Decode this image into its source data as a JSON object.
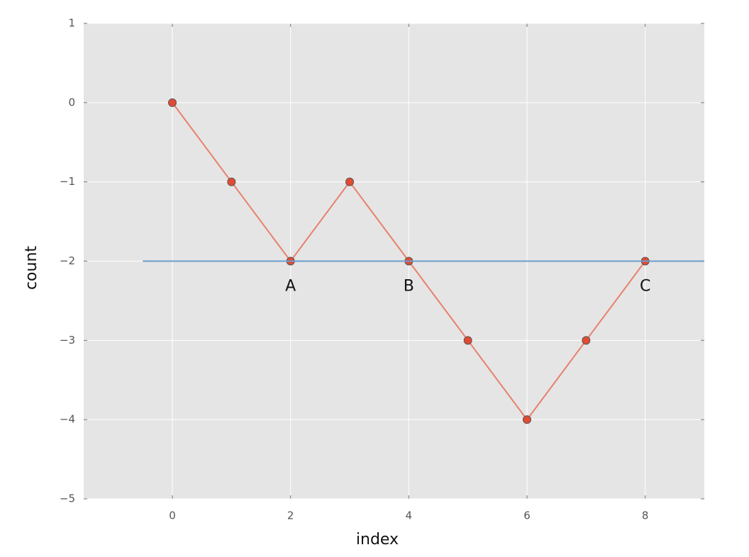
{
  "chart_data": {
    "type": "line",
    "xlabel": "index",
    "ylabel": "count",
    "xlim": [
      -1.5,
      9
    ],
    "ylim": [
      -5,
      1
    ],
    "xticks": [
      0,
      2,
      4,
      6,
      8
    ],
    "yticks": [
      {
        "value": -5,
        "label": "−5"
      },
      {
        "value": -4,
        "label": "−4"
      },
      {
        "value": -3,
        "label": "−3"
      },
      {
        "value": -2,
        "label": "−2"
      },
      {
        "value": -1,
        "label": "−1"
      },
      0,
      1
    ],
    "grid": true,
    "background": "#e5e5e5",
    "series": [
      {
        "color": "#e8806a",
        "marker_color": "#e24a33",
        "markers": true,
        "x": [
          0,
          1,
          2,
          3,
          4,
          5,
          6,
          7,
          8
        ],
        "values": [
          0,
          -1,
          -2,
          -1,
          -2,
          -3,
          -4,
          -3,
          -2
        ]
      },
      {
        "color": "#6a9ed0",
        "markers": false,
        "x": [
          -0.5,
          9
        ],
        "values": [
          -2,
          -2
        ]
      }
    ],
    "annotations": [
      {
        "text": "A",
        "x": 2,
        "y": -2
      },
      {
        "text": "B",
        "x": 4,
        "y": -2
      },
      {
        "text": "C",
        "x": 8,
        "y": -2
      }
    ]
  }
}
